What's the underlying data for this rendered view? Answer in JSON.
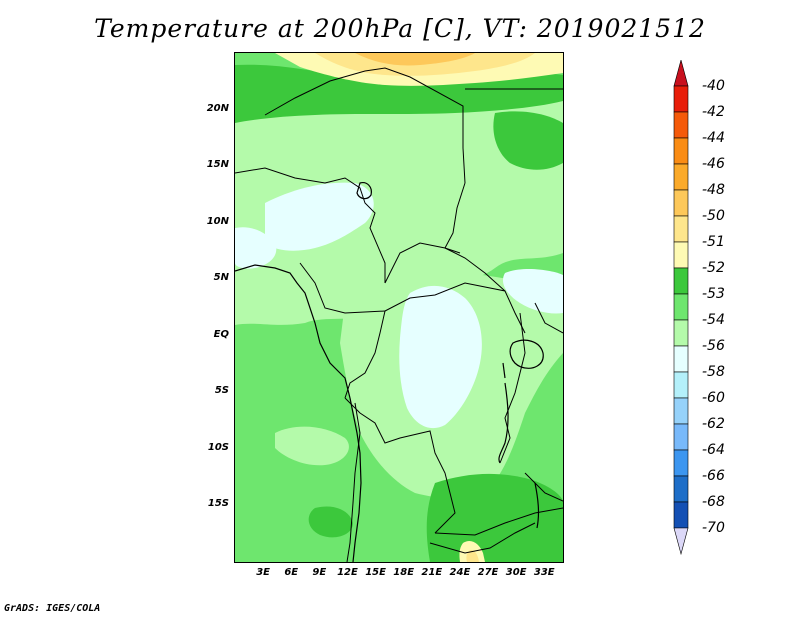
{
  "title": "Temperature at 200hPa [C], VT: 2019021512",
  "credit": "GrADS: IGES/COLA",
  "map": {
    "lat_range": [
      -20,
      25
    ],
    "lon_range": [
      0,
      35
    ],
    "lat_ticks": [
      {
        "value": 20,
        "label": "20N"
      },
      {
        "value": 15,
        "label": "15N"
      },
      {
        "value": 10,
        "label": "10N"
      },
      {
        "value": 5,
        "label": "5N"
      },
      {
        "value": 0,
        "label": "EQ"
      },
      {
        "value": -5,
        "label": "5S"
      },
      {
        "value": -10,
        "label": "10S"
      },
      {
        "value": -15,
        "label": "15S"
      }
    ],
    "lon_ticks": [
      {
        "value": 3,
        "label": "3E"
      },
      {
        "value": 6,
        "label": "6E"
      },
      {
        "value": 9,
        "label": "9E"
      },
      {
        "value": 12,
        "label": "12E"
      },
      {
        "value": 15,
        "label": "15E"
      },
      {
        "value": 18,
        "label": "18E"
      },
      {
        "value": 21,
        "label": "21E"
      },
      {
        "value": 24,
        "label": "24E"
      },
      {
        "value": 27,
        "label": "27E"
      },
      {
        "value": 30,
        "label": "30E"
      },
      {
        "value": 33,
        "label": "33E"
      }
    ]
  },
  "colorbar": {
    "levels": [
      {
        "label": "-40",
        "color": "#e81e0a"
      },
      {
        "label": "-42",
        "color": "#f55a0a"
      },
      {
        "label": "-44",
        "color": "#fa8c14"
      },
      {
        "label": "-46",
        "color": "#fbaa2a"
      },
      {
        "label": "-48",
        "color": "#fdc85a"
      },
      {
        "label": "-50",
        "color": "#fee68c"
      },
      {
        "label": "-51",
        "color": "#fefab4"
      },
      {
        "label": "-52",
        "color": "#3cc83c"
      },
      {
        "label": "-53",
        "color": "#6ee66e"
      },
      {
        "label": "-54",
        "color": "#b4faaa"
      },
      {
        "label": "-56",
        "color": "#e6ffff"
      },
      {
        "label": "-58",
        "color": "#b4f0fa"
      },
      {
        "label": "-60",
        "color": "#96d2fa"
      },
      {
        "label": "-62",
        "color": "#78b9fa"
      },
      {
        "label": "-64",
        "color": "#3c96f0"
      },
      {
        "label": "-66",
        "color": "#1e6ec8"
      },
      {
        "label": "-68",
        "color": "#1450b4"
      },
      {
        "label": "-70",
        "color": "#0a1e78"
      }
    ],
    "over_color": "#c8101e",
    "under_color": "#dcd8f8"
  }
}
